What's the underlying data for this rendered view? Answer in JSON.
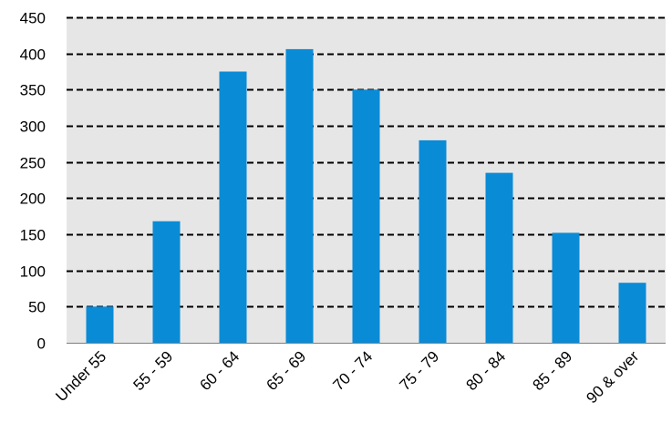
{
  "chart_data": {
    "type": "bar",
    "categories": [
      "Under 55",
      "55 - 59",
      "60 - 64",
      "65 - 69",
      "70 - 74",
      "75 - 79",
      "80 - 84",
      "85 - 89",
      "90 & over"
    ],
    "values": [
      50,
      168,
      375,
      406,
      350,
      280,
      235,
      152,
      83
    ],
    "title": "",
    "xlabel": "",
    "ylabel": "",
    "ylim": [
      0,
      450
    ],
    "yticks": [
      0,
      50,
      100,
      150,
      200,
      250,
      300,
      350,
      400,
      450
    ],
    "grid": true,
    "grid_style": "dashed",
    "legend": "none",
    "colors": {
      "bar": "#0a8bd6",
      "plot_background": "#e6e6e6",
      "grid": "#000000",
      "text": "#000000"
    }
  }
}
